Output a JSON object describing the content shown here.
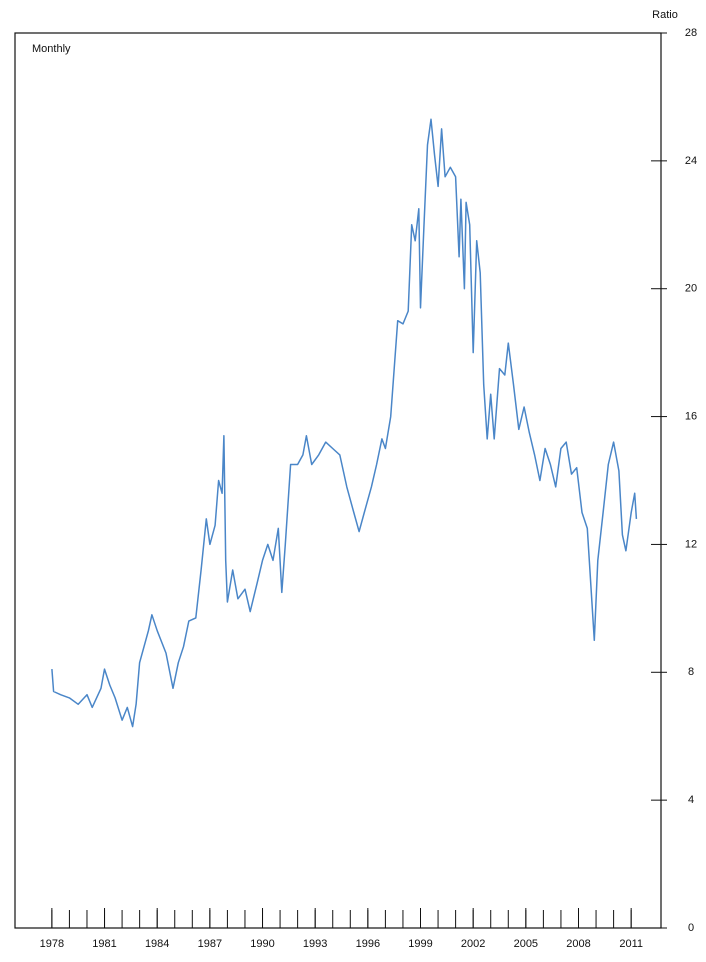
{
  "chart_data": {
    "type": "line",
    "y_label": "Ratio",
    "annotation": "Monthly",
    "x": [
      1978.0,
      1978.1,
      1978.5,
      1979.0,
      1979.5,
      1980.0,
      1980.3,
      1980.8,
      1981.0,
      1981.3,
      1981.6,
      1982.0,
      1982.3,
      1982.6,
      1982.8,
      1983.0,
      1983.5,
      1983.7,
      1984.0,
      1984.5,
      1984.9,
      1985.2,
      1985.5,
      1985.8,
      1986.2,
      1986.5,
      1986.8,
      1987.0,
      1987.3,
      1987.5,
      1987.7,
      1987.8,
      1987.9,
      1988.0,
      1988.3,
      1988.6,
      1989.0,
      1989.3,
      1989.7,
      1990.0,
      1990.3,
      1990.6,
      1990.9,
      1991.1,
      1991.3,
      1991.6,
      1992.0,
      1992.3,
      1992.5,
      1992.8,
      1993.2,
      1993.6,
      1994.0,
      1994.4,
      1994.8,
      1995.2,
      1995.5,
      1995.8,
      1996.2,
      1996.5,
      1996.8,
      1997.0,
      1997.3,
      1997.5,
      1997.7,
      1998.0,
      1998.3,
      1998.5,
      1998.7,
      1998.9,
      1999.0,
      1999.2,
      1999.4,
      1999.6,
      1999.8,
      2000.0,
      2000.2,
      2000.4,
      2000.7,
      2001.0,
      2001.2,
      2001.3,
      2001.5,
      2001.6,
      2001.8,
      2002.0,
      2002.2,
      2002.4,
      2002.6,
      2002.8,
      2003.0,
      2003.2,
      2003.5,
      2003.8,
      2004.0,
      2004.3,
      2004.6,
      2004.9,
      2005.2,
      2005.5,
      2005.8,
      2006.1,
      2006.4,
      2006.7,
      2007.0,
      2007.3,
      2007.6,
      2007.9,
      2008.2,
      2008.5,
      2008.9,
      2009.1,
      2009.4,
      2009.7,
      2010.0,
      2010.3,
      2010.5,
      2010.7,
      2011.0,
      2011.2,
      2011.3
    ],
    "series": [
      {
        "color": "#4a86c8",
        "values": [
          8.1,
          7.4,
          7.3,
          7.2,
          7.0,
          7.3,
          6.9,
          7.5,
          8.1,
          7.6,
          7.2,
          6.5,
          6.9,
          6.3,
          7.0,
          8.3,
          9.3,
          9.8,
          9.3,
          8.6,
          7.5,
          8.3,
          8.8,
          9.6,
          9.7,
          11.2,
          12.8,
          12.0,
          12.6,
          14.0,
          13.6,
          15.4,
          11.5,
          10.2,
          11.2,
          10.3,
          10.6,
          9.9,
          10.8,
          11.5,
          12.0,
          11.5,
          12.5,
          10.5,
          12.0,
          14.5,
          14.5,
          14.8,
          15.4,
          14.5,
          14.8,
          15.2,
          15.0,
          14.8,
          13.8,
          13.0,
          12.4,
          13.0,
          13.8,
          14.5,
          15.3,
          15.0,
          16.0,
          17.5,
          19.0,
          18.9,
          19.3,
          22.0,
          21.5,
          22.5,
          19.4,
          22.0,
          24.5,
          25.3,
          24.2,
          23.2,
          25.0,
          23.5,
          23.8,
          23.5,
          21.0,
          22.8,
          20.0,
          22.7,
          22.0,
          18.0,
          21.5,
          20.5,
          17.0,
          15.3,
          16.7,
          15.3,
          17.5,
          17.3,
          18.3,
          17.0,
          15.6,
          16.3,
          15.5,
          14.8,
          14.0,
          15.0,
          14.5,
          13.8,
          15.0,
          15.2,
          14.2,
          14.4,
          13.0,
          12.5,
          9.0,
          11.5,
          13.0,
          14.5,
          15.2,
          14.3,
          12.3,
          11.8,
          13.0,
          13.6,
          12.8
        ]
      }
    ],
    "xlim": [
      1975.9,
      2012.7
    ],
    "xticks": [
      1978,
      1981,
      1984,
      1987,
      1990,
      1993,
      1996,
      1999,
      2002,
      2005,
      2008,
      2011
    ],
    "xminorticks": [
      1978,
      1979,
      1980,
      1981,
      1982,
      1983,
      1984,
      1985,
      1986,
      1987,
      1988,
      1989,
      1990,
      1991,
      1992,
      1993,
      1994,
      1995,
      1996,
      1997,
      1998,
      1999,
      2000,
      2001,
      2002,
      2003,
      2004,
      2005,
      2006,
      2007,
      2008,
      2009,
      2010,
      2011
    ],
    "ylim": [
      0,
      28
    ],
    "yticks": [
      0,
      4,
      8,
      12,
      16,
      20,
      24,
      28
    ]
  }
}
